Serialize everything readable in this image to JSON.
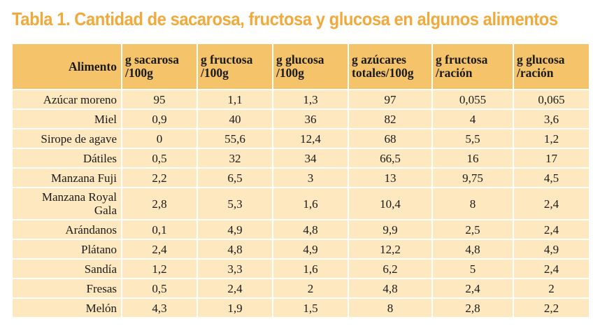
{
  "title": "Tabla 1. Cantidad de sacarosa, fructosa y glucosa en algunos alimentos",
  "colors": {
    "title": "#f2a93b",
    "header_bg": "#f5c46a",
    "row_bg": "#fde8bf"
  },
  "table": {
    "columns": [
      {
        "lines": [
          "Alimento"
        ]
      },
      {
        "lines": [
          "g sacarosa",
          "/100g"
        ]
      },
      {
        "lines": [
          "g fructosa",
          "/100g"
        ]
      },
      {
        "lines": [
          "g glucosa",
          "/100g"
        ]
      },
      {
        "lines": [
          "g azúcares",
          "totales/100g"
        ]
      },
      {
        "lines": [
          "g fructosa",
          "/ración"
        ]
      },
      {
        "lines": [
          "g glucosa",
          "/ración"
        ]
      }
    ],
    "rows": [
      {
        "food": [
          "Azúcar moreno"
        ],
        "values": [
          "95",
          "1,1",
          "1,3",
          "97",
          "0,055",
          "0,065"
        ]
      },
      {
        "food": [
          "Miel"
        ],
        "values": [
          "0,9",
          "40",
          "36",
          "82",
          "4",
          "3,6"
        ]
      },
      {
        "food": [
          "Sirope de agave"
        ],
        "values": [
          "0",
          "55,6",
          "12,4",
          "68",
          "5,5",
          "1,2"
        ]
      },
      {
        "food": [
          "Dátiles"
        ],
        "values": [
          "0,5",
          "32",
          "34",
          "66,5",
          "16",
          "17"
        ]
      },
      {
        "food": [
          "Manzana Fuji"
        ],
        "values": [
          "2,2",
          "6,5",
          "3",
          "13",
          "9,75",
          "4,5"
        ]
      },
      {
        "food": [
          "Manzana Royal",
          "Gala"
        ],
        "values": [
          "2,8",
          "5,3",
          "1,6",
          "10,4",
          "8",
          "2,4"
        ]
      },
      {
        "food": [
          "Arándanos"
        ],
        "values": [
          "0,1",
          "4,9",
          "4,8",
          "9,9",
          "2,5",
          "2,4"
        ]
      },
      {
        "food": [
          "Plátano"
        ],
        "values": [
          "2,4",
          "4,8",
          "4,9",
          "12,2",
          "4,8",
          "4,9"
        ]
      },
      {
        "food": [
          "Sandía"
        ],
        "values": [
          "1,2",
          "3,3",
          "1,6",
          "6,2",
          "5",
          "2,4"
        ]
      },
      {
        "food": [
          "Fresas"
        ],
        "values": [
          "0,5",
          "2,4",
          "2",
          "4,8",
          "2,4",
          "2"
        ]
      },
      {
        "food": [
          "Melón"
        ],
        "values": [
          "4,3",
          "1,9",
          "1,5",
          "8",
          "2,8",
          "2,2"
        ]
      }
    ]
  }
}
